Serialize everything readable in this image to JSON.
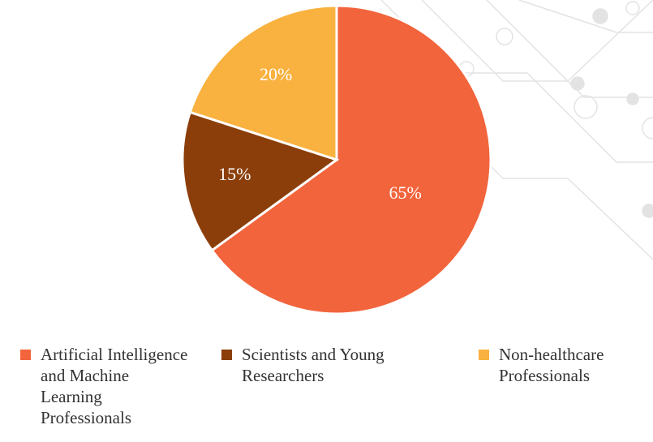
{
  "chart_data": {
    "type": "pie",
    "categories": [
      "Artificial Intelligence and Machine Learning Professionals",
      "Scientists and Young Researchers",
      "Non-healthcare Professionals"
    ],
    "values": [
      65,
      15,
      20
    ],
    "value_labels": [
      "65%",
      "15%",
      "20%"
    ],
    "colors": [
      "#f2643c",
      "#8b3e0a",
      "#f9b13f"
    ]
  }
}
